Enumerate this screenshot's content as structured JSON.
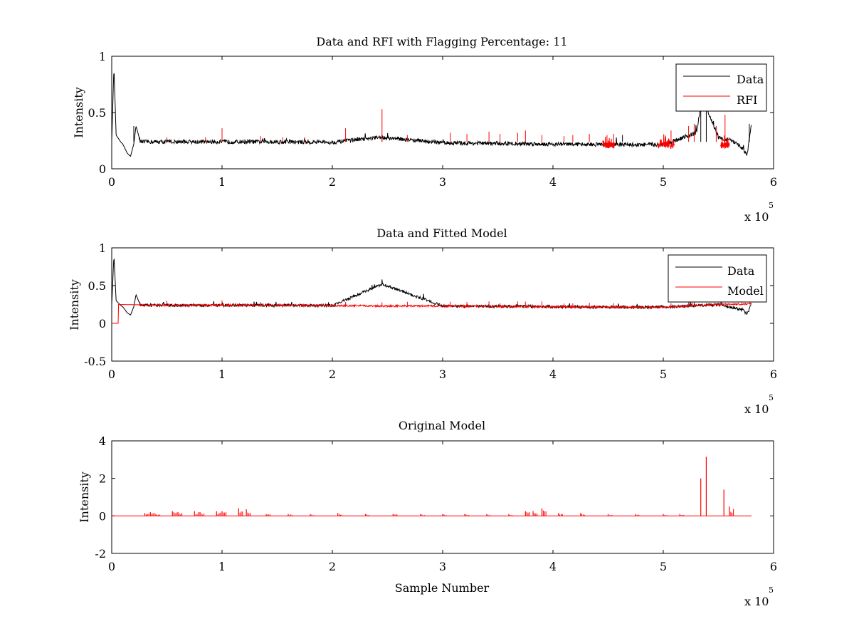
{
  "chart_data": [
    {
      "type": "line",
      "title": "Data and RFI with Flagging Percentage: 11",
      "xlabel": "",
      "ylabel": "Intensity",
      "xlim": [
        0,
        6
      ],
      "ylim": [
        0,
        1
      ],
      "xticks": [
        "0",
        "1",
        "2",
        "3",
        "4",
        "5",
        "6"
      ],
      "yticks": [
        "0",
        "0.5",
        "1"
      ],
      "x_multiplier": "x 10",
      "x_multiplier_exp": "5",
      "legend": "top-right",
      "grid": false,
      "series": [
        {
          "name": "Data",
          "color": "#000000",
          "x": [
            0,
            0.02,
            0.04,
            0.08,
            0.1,
            0.14,
            0.17,
            0.2,
            0.22,
            0.26,
            0.5,
            1.0,
            1.5,
            2.0,
            2.45,
            3.0,
            3.5,
            4.0,
            4.5,
            5.0,
            5.3,
            5.34,
            5.39,
            5.5,
            5.62,
            5.72,
            5.76,
            5.8
          ],
          "y": [
            0.25,
            0.9,
            0.3,
            0.24,
            0.22,
            0.14,
            0.11,
            0.22,
            0.38,
            0.24,
            0.24,
            0.24,
            0.24,
            0.235,
            0.28,
            0.23,
            0.225,
            0.22,
            0.215,
            0.215,
            0.32,
            0.55,
            0.55,
            0.28,
            0.25,
            0.18,
            0.12,
            0.4
          ]
        },
        {
          "name": "RFI",
          "color": "#ff0000",
          "spikes": [
            [
              0.5,
              0.28
            ],
            [
              0.85,
              0.28
            ],
            [
              1.0,
              0.36
            ],
            [
              1.35,
              0.29
            ],
            [
              1.55,
              0.28
            ],
            [
              1.75,
              0.28
            ],
            [
              2.12,
              0.36
            ],
            [
              2.45,
              0.53
            ],
            [
              2.68,
              0.3
            ],
            [
              3.07,
              0.32
            ],
            [
              3.22,
              0.31
            ],
            [
              3.42,
              0.33
            ],
            [
              3.52,
              0.31
            ],
            [
              3.68,
              0.32
            ],
            [
              3.75,
              0.34
            ],
            [
              3.9,
              0.3
            ],
            [
              4.1,
              0.29
            ],
            [
              4.18,
              0.3
            ],
            [
              4.33,
              0.31
            ],
            [
              4.55,
              0.31
            ],
            [
              5.07,
              0.34
            ],
            [
              5.23,
              0.38
            ],
            [
              5.28,
              0.4
            ],
            [
              5.48,
              0.38
            ],
            [
              5.56,
              0.48
            ]
          ],
          "flagged_ranges": [
            [
              4.45,
              4.56
            ],
            [
              4.95,
              5.1
            ],
            [
              5.52,
              5.6
            ]
          ]
        }
      ]
    },
    {
      "type": "line",
      "title": "Data and Fitted Model",
      "xlabel": "",
      "ylabel": "Intensity",
      "xlim": [
        0,
        6
      ],
      "ylim": [
        -0.5,
        1
      ],
      "xticks": [
        "0",
        "1",
        "2",
        "3",
        "4",
        "5",
        "6"
      ],
      "yticks": [
        "-0.5",
        "0",
        "0.5",
        "1"
      ],
      "x_multiplier": "x 10",
      "x_multiplier_exp": "5",
      "legend": "top-right",
      "grid": false,
      "series": [
        {
          "name": "Data",
          "color": "#000000",
          "x": [
            0,
            0.02,
            0.04,
            0.08,
            0.1,
            0.14,
            0.17,
            0.2,
            0.22,
            0.26,
            0.5,
            1.0,
            1.5,
            2.0,
            2.45,
            3.0,
            3.5,
            4.0,
            4.5,
            5.0,
            5.5,
            5.72,
            5.76,
            5.8
          ],
          "y": [
            0.25,
            0.9,
            0.3,
            0.24,
            0.22,
            0.14,
            0.11,
            0.22,
            0.38,
            0.24,
            0.24,
            0.24,
            0.24,
            0.235,
            0.52,
            0.23,
            0.225,
            0.22,
            0.215,
            0.215,
            0.25,
            0.18,
            0.12,
            0.26
          ]
        },
        {
          "name": "Model",
          "color": "#ff0000",
          "x": [
            0,
            0.06,
            0.06,
            0.5,
            1.0,
            1.5,
            2.0,
            2.5,
            3.0,
            3.5,
            4.0,
            4.5,
            5.0,
            5.5,
            5.8
          ],
          "y": [
            0,
            0,
            0.25,
            0.24,
            0.24,
            0.24,
            0.235,
            0.23,
            0.23,
            0.225,
            0.22,
            0.215,
            0.215,
            0.25,
            0.26
          ]
        }
      ]
    },
    {
      "type": "line",
      "title": "Original Model",
      "xlabel": "Sample Number",
      "ylabel": "Intensity",
      "xlim": [
        0,
        6
      ],
      "ylim": [
        -2,
        4
      ],
      "xticks": [
        "0",
        "1",
        "2",
        "3",
        "4",
        "5",
        "6"
      ],
      "yticks": [
        "-2",
        "0",
        "2",
        "4"
      ],
      "x_multiplier": "x 10",
      "x_multiplier_exp": "5",
      "grid": false,
      "series": [
        {
          "color": "#ff0000",
          "baseline": 0,
          "x_range": [
            0,
            5.8
          ],
          "spikes": [
            [
              0.3,
              0.15
            ],
            [
              0.35,
              0.2
            ],
            [
              0.4,
              0.1
            ],
            [
              0.55,
              0.25
            ],
            [
              0.6,
              0.2
            ],
            [
              0.75,
              0.25
            ],
            [
              0.8,
              0.2
            ],
            [
              0.95,
              0.25
            ],
            [
              1.0,
              0.25
            ],
            [
              1.15,
              0.4
            ],
            [
              1.22,
              0.35
            ],
            [
              1.4,
              0.1
            ],
            [
              1.6,
              0.1
            ],
            [
              1.8,
              0.1
            ],
            [
              2.05,
              0.15
            ],
            [
              2.3,
              0.1
            ],
            [
              2.55,
              0.1
            ],
            [
              2.8,
              0.1
            ],
            [
              3.0,
              0.1
            ],
            [
              3.2,
              0.1
            ],
            [
              3.4,
              0.1
            ],
            [
              3.6,
              0.1
            ],
            [
              3.75,
              0.25
            ],
            [
              3.82,
              0.25
            ],
            [
              3.9,
              0.4
            ],
            [
              4.05,
              0.15
            ],
            [
              4.25,
              0.15
            ],
            [
              4.5,
              0.1
            ],
            [
              4.75,
              0.1
            ],
            [
              5.0,
              0.1
            ],
            [
              5.15,
              0.1
            ],
            [
              5.34,
              2.0
            ],
            [
              5.39,
              3.15
            ],
            [
              5.55,
              1.4
            ],
            [
              5.6,
              0.5
            ]
          ]
        }
      ]
    }
  ]
}
